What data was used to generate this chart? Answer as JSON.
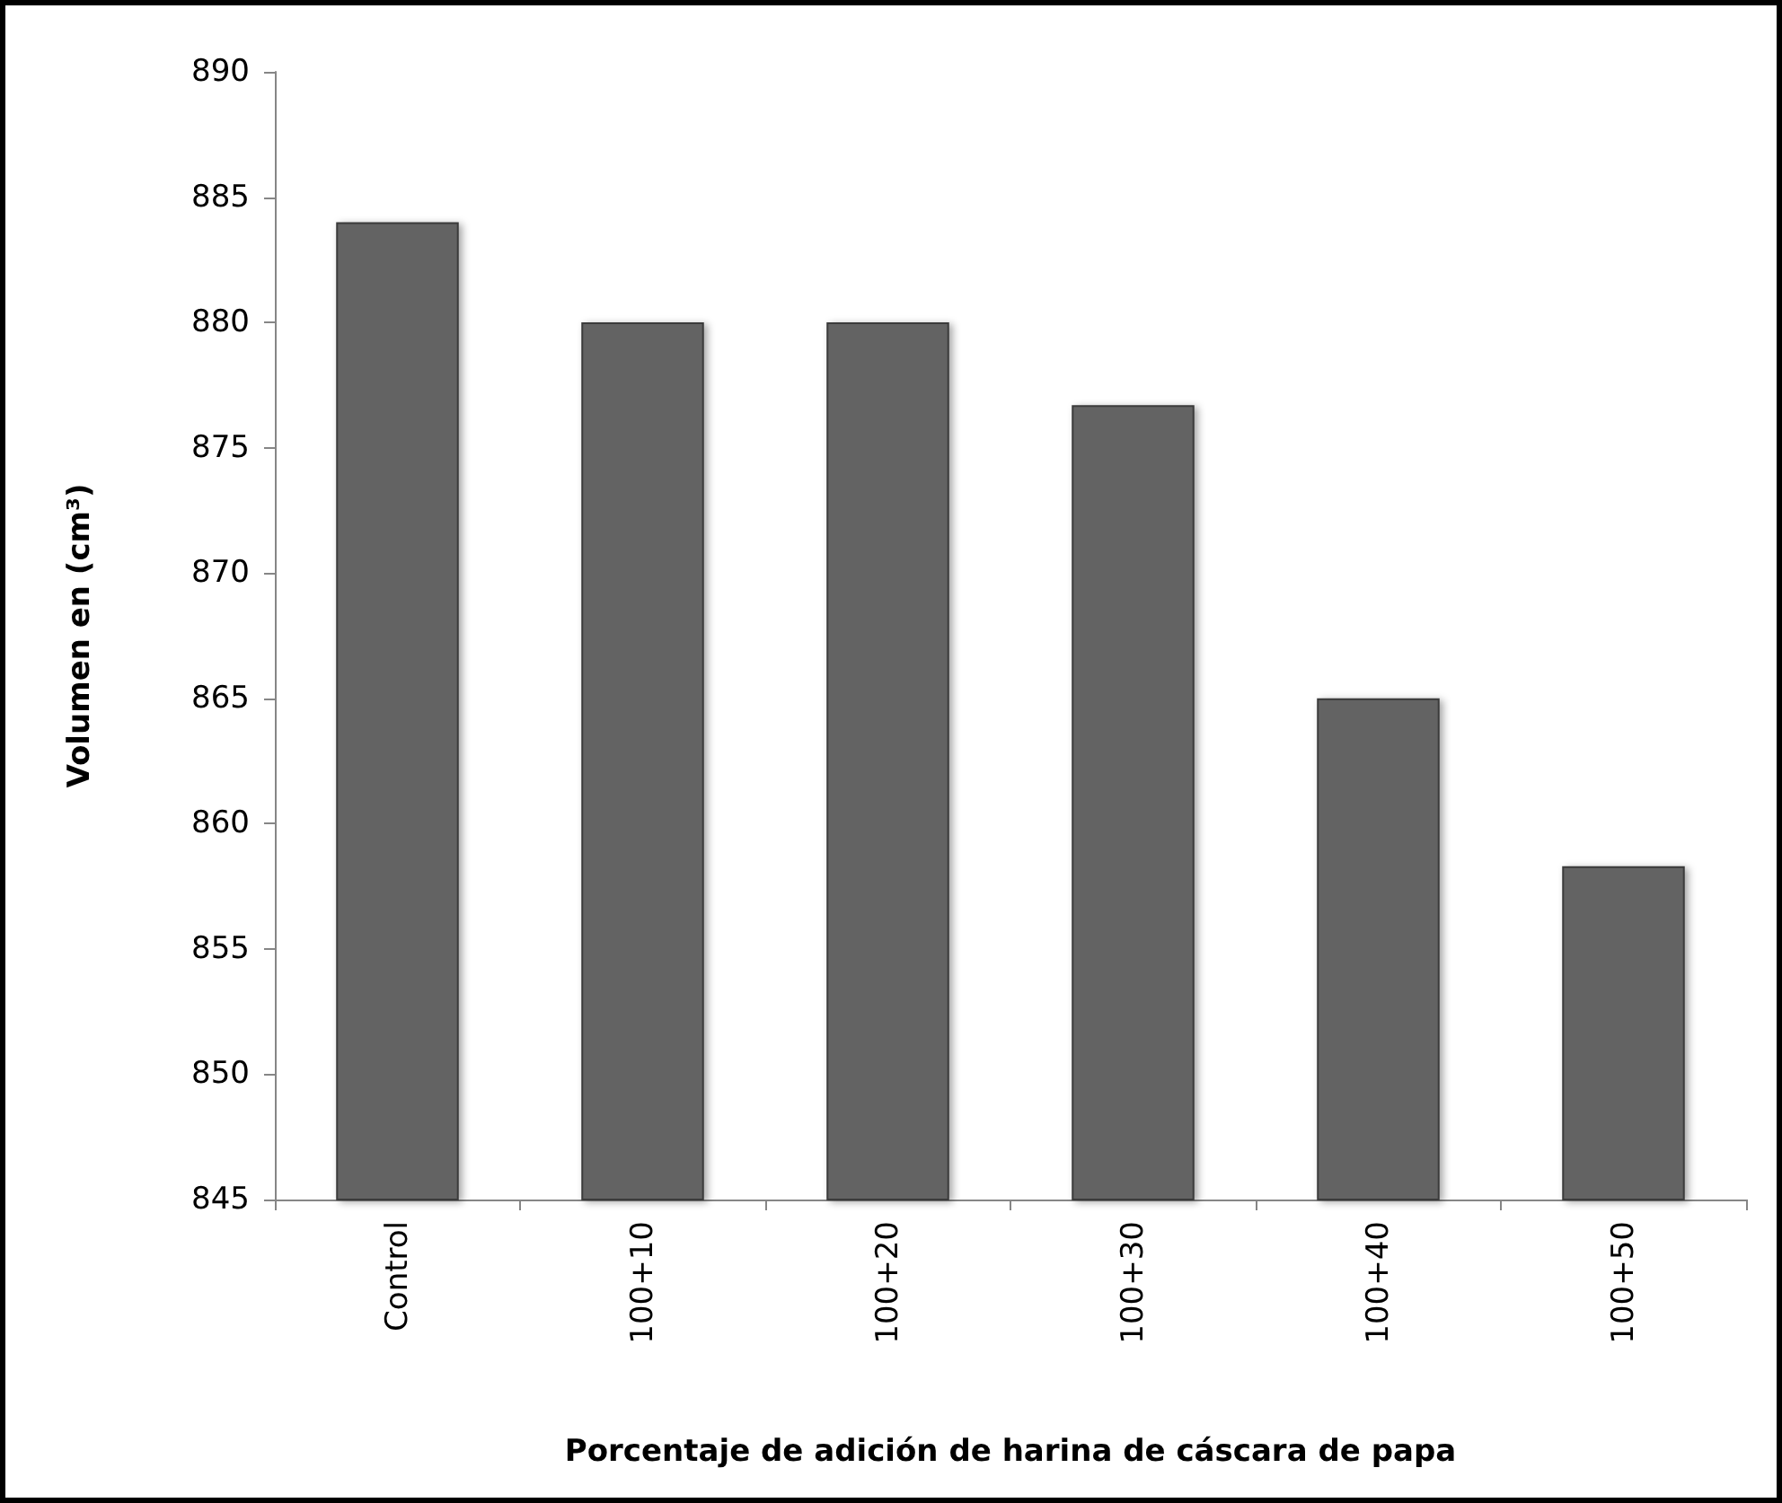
{
  "chart_data": {
    "type": "bar",
    "xlabel": "Porcentaje de adición de harina de cáscara de papa",
    "ylabel": "Volumen en (cm³)",
    "categories": [
      "Control",
      "100+10",
      "100+20",
      "100+30",
      "100+40",
      "100+50"
    ],
    "values": [
      884,
      880,
      880,
      876.7,
      865,
      858.3
    ],
    "color": "#636363",
    "ylim": [
      845,
      890
    ],
    "yticks": [
      845,
      850,
      855,
      860,
      865,
      870,
      875,
      880,
      885,
      890
    ],
    "grid": false
  }
}
